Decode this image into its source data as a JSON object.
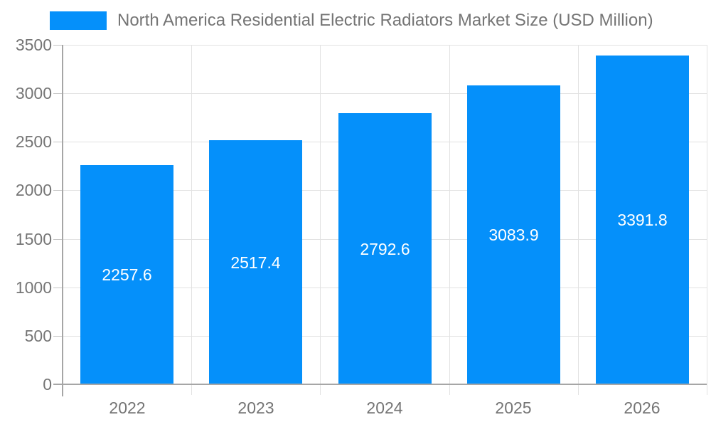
{
  "legend": {
    "label": "North America Residential Electric Radiators Market Size (USD Million)"
  },
  "chart_data": {
    "type": "bar",
    "title": "North America Residential Electric Radiators Market Size (USD Million)",
    "categories": [
      "2022",
      "2023",
      "2024",
      "2025",
      "2026"
    ],
    "values": [
      2257.6,
      2517.4,
      2792.6,
      3083.9,
      3391.8
    ],
    "value_labels": [
      "2257.6",
      "2517.4",
      "2792.6",
      "3083.9",
      "3391.8"
    ],
    "xlabel": "",
    "ylabel": "",
    "ylim": [
      0,
      3500
    ],
    "yticks": [
      0,
      500,
      1000,
      1500,
      2000,
      2500,
      3000,
      3500
    ],
    "grid": true,
    "legend_position": "top",
    "colors": {
      "bar": "#0590FA",
      "bar_label": "#FFFFFF",
      "axis_text": "#757575",
      "gridline": "#E2E2E2",
      "tick": "#C4C4C4",
      "axis_line": "#A6A6A6",
      "background": "#FFFFFF"
    }
  }
}
